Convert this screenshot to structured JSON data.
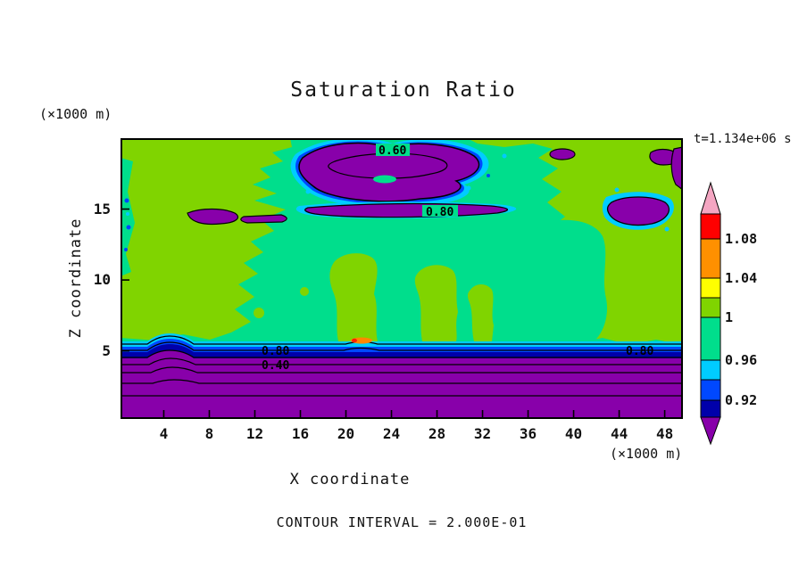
{
  "title": "Saturation Ratio",
  "timestamp": "t=1.134e+06 s",
  "footer": "CONTOUR INTERVAL = 2.000E-01",
  "x_axis": {
    "label": "X coordinate",
    "units": "(×1000 m)",
    "ticks": [
      4,
      8,
      12,
      16,
      20,
      24,
      28,
      32,
      36,
      40,
      44,
      48
    ]
  },
  "y_axis": {
    "label": "Z coordinate",
    "units": "(×1000 m)",
    "ticks": [
      5,
      10,
      15
    ]
  },
  "plot_labels": [
    {
      "text": "0.60"
    },
    {
      "text": "0.80"
    },
    {
      "text": "0.80"
    },
    {
      "text": "0.40"
    },
    {
      "text": "0.80"
    }
  ],
  "palette": {
    "text": "#111111",
    "spring_green": "#00DE8C",
    "green": "#80D400",
    "purple": "#8800AA",
    "cyan": "#00CCFF",
    "blue": "#0048FF",
    "navy": "#0000AA",
    "orange": "#FF8800",
    "red": "#FF2000",
    "yellow": "#FFFF00"
  },
  "colorbar": {
    "over_color": "#F4A6C2",
    "under_color": "#8800AA",
    "cells": [
      {
        "color": "#FF0000",
        "h": 28,
        "label": "1.08"
      },
      {
        "color": "#FF9000",
        "h": 44,
        "label": "1.04"
      },
      {
        "color": "#FFFF00",
        "h": 22,
        "label": ""
      },
      {
        "color": "#80D400",
        "h": 22,
        "label": "1"
      },
      {
        "color": "#00DE8C",
        "h": 48,
        "label": "0.96"
      },
      {
        "color": "#00CCFF",
        "h": 22,
        "label": ""
      },
      {
        "color": "#0048FF",
        "h": 23,
        "label": "0.92"
      },
      {
        "color": "#0000AA",
        "h": 19,
        "label": ""
      }
    ]
  },
  "chart_data": {
    "type": "heatmap",
    "title": "Saturation Ratio",
    "xlabel": "X coordinate (×1000 m)",
    "ylabel": "Z coordinate (×1000 m)",
    "x_range": [
      0.2,
      49.6
    ],
    "y_range": [
      0.2,
      20
    ],
    "time_label": "t=1.134e+06 s",
    "contour_interval": 0.2,
    "contour_line_values": [
      0.4,
      0.6,
      0.8
    ],
    "color_scale": [
      {
        "color": "#F4A6C2",
        "range": "> 1.12"
      },
      {
        "color": "#FF0000",
        "range": "1.08 - 1.12"
      },
      {
        "color": "#FF9000",
        "range": "1.04 - 1.08"
      },
      {
        "color": "#FFFF00",
        "range": "1.02 - 1.04"
      },
      {
        "color": "#80D400",
        "range": "1.00 - 1.02"
      },
      {
        "color": "#00DE8C",
        "range": "0.96 - 1.00"
      },
      {
        "color": "#00CCFF",
        "range": "0.94 - 0.96"
      },
      {
        "color": "#0048FF",
        "range": "0.92 - 0.94"
      },
      {
        "color": "#0000AA",
        "range": "0.90 - 0.92"
      },
      {
        "color": "#8800AA",
        "range": "< 0.90"
      }
    ],
    "field_summary": [
      "Saturation ratio near 0.96-1.02 (green and teal fills) over most of the domain above z = 5 km",
      "Strongly sub-saturated purple layer (S < 0.8) below z = 5 km across all x, with stacked horizontal contour lines labelled 0.80 and 0.40",
      "Dry purple pockets (S between 0.6 and 0.8) near z = 16-19 km for x = 12-30, outlined in black and labelled 0.60",
      "Thin sub-saturated streak near z = 14.5 km from x = 13 to x = 35, labelled 0.80",
      "Small super-saturated orange/red spot (S > 1.04) near x = 20, z = 5.5",
      "Sub-saturated purple patches near the right edge around x = 43-48, z = 13-15"
    ]
  }
}
